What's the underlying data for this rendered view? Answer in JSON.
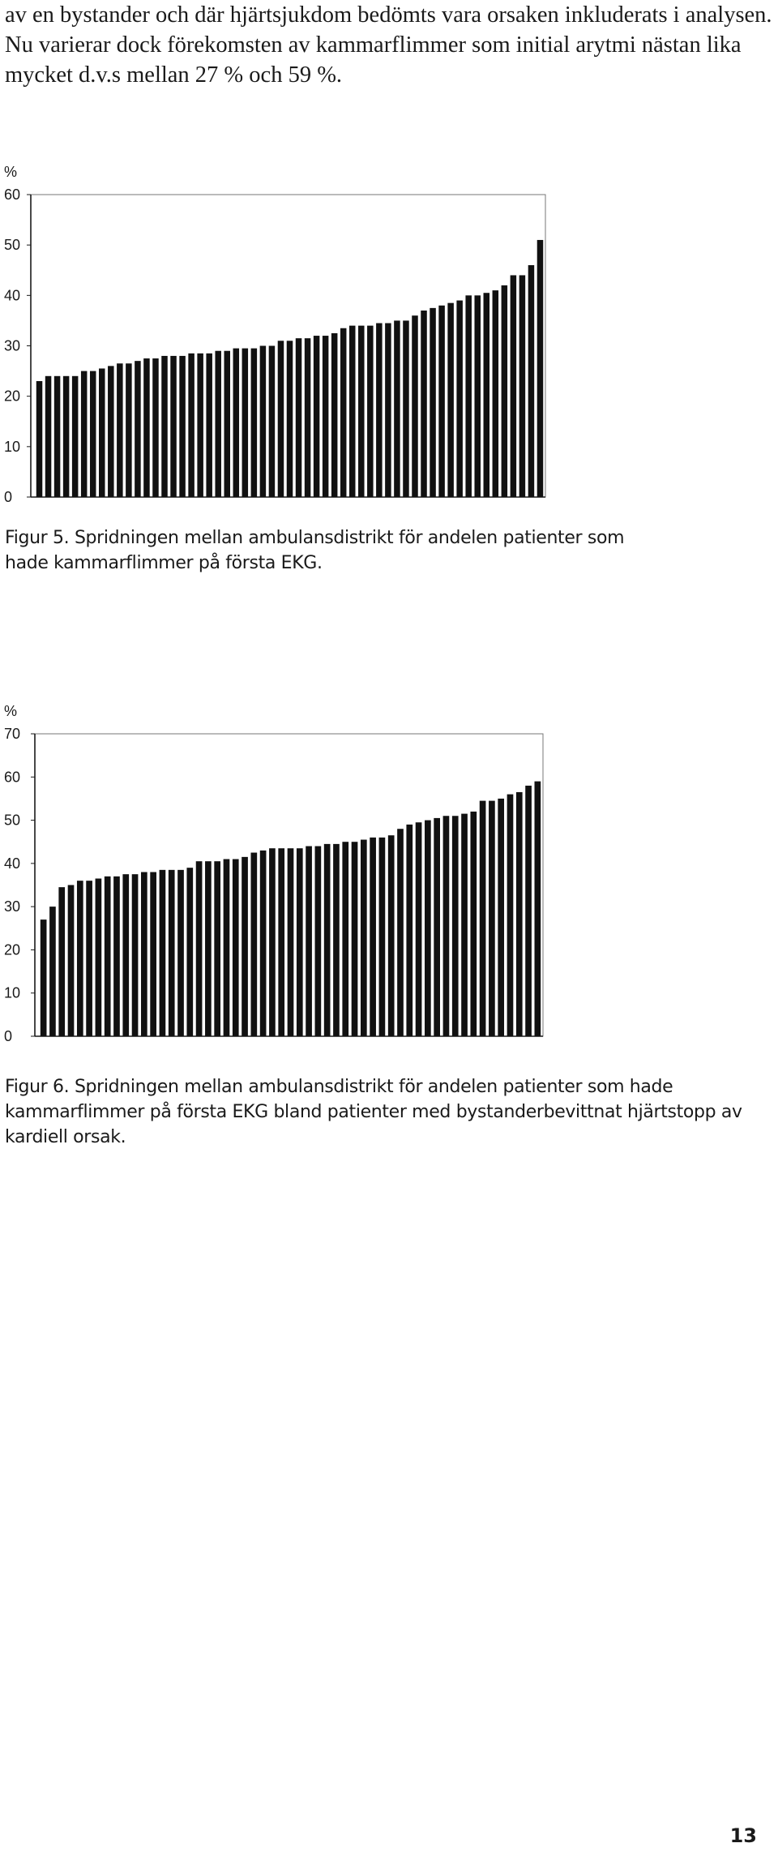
{
  "body_text": "av en bystander och där hjärtsjukdom bedömts vara orsaken inkluderats i analysen. Nu varierar dock förekomsten av kammarflimmer som initial arytmi nästan lika mycket d.v.s mellan 27 % och 59 %.",
  "figures": [
    {
      "caption": "Figur 5. Spridningen mellan ambulansdistrikt för andelen patienter som hade kammarflimmer på första EKG.",
      "unit_label": "%"
    },
    {
      "caption": "Figur 6. Spridningen mellan ambulansdistrikt för andelen patienter som hade kammarflimmer på första EKG bland patienter med bystanderbevittnat hjärtstopp av kardiell orsak.",
      "unit_label": "%"
    }
  ],
  "chart_data": [
    {
      "type": "bar",
      "ylabel": "%",
      "ylim": [
        0,
        60
      ],
      "yticks": [
        0,
        10,
        20,
        30,
        40,
        50,
        60
      ],
      "grid": false,
      "values": [
        23,
        24,
        24,
        24,
        24,
        25,
        25,
        25.5,
        26,
        26.5,
        26.5,
        27,
        27.5,
        27.5,
        28,
        28,
        28,
        28.5,
        28.5,
        28.5,
        29,
        29,
        29.5,
        29.5,
        29.5,
        30,
        30,
        31,
        31,
        31.5,
        31.5,
        32,
        32,
        32.5,
        33.5,
        34,
        34,
        34,
        34.5,
        34.5,
        35,
        35,
        36,
        37,
        37.5,
        38,
        38.5,
        39,
        40,
        40,
        40.5,
        41,
        42,
        44,
        44,
        46,
        51
      ]
    },
    {
      "type": "bar",
      "ylabel": "%",
      "ylim": [
        0,
        70
      ],
      "yticks": [
        0,
        10,
        20,
        30,
        40,
        50,
        60,
        70
      ],
      "grid": false,
      "values": [
        27,
        30,
        34.5,
        35,
        36,
        36,
        36.5,
        37,
        37,
        37.5,
        37.5,
        38,
        38,
        38.5,
        38.5,
        38.5,
        39,
        40.5,
        40.5,
        40.5,
        41,
        41,
        41.5,
        42.5,
        43,
        43.5,
        43.5,
        43.5,
        43.5,
        44,
        44,
        44.5,
        44.5,
        45,
        45,
        45.5,
        46,
        46,
        46.5,
        48,
        49,
        49.5,
        50,
        50.5,
        51,
        51,
        51.5,
        52,
        54.5,
        54.5,
        55,
        56,
        56.5,
        58,
        59
      ]
    }
  ],
  "page_number": "13"
}
